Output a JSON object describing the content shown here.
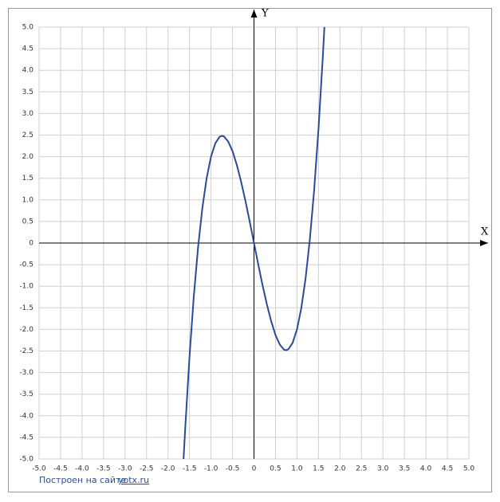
{
  "chart_data": {
    "type": "line",
    "x_label": "X",
    "y_label": "Y",
    "xlim": [
      -5,
      5
    ],
    "ylim": [
      -5,
      5
    ],
    "xticks": [
      {
        "value": -5,
        "label": "-5.0"
      },
      -4.5,
      {
        "value": -4,
        "label": "-4.0"
      },
      -3.5,
      {
        "value": -3,
        "label": "-3.0"
      },
      -2.5,
      {
        "value": -2,
        "label": "-2.0"
      },
      -1.5,
      {
        "value": -1,
        "label": "-1.0"
      },
      -0.5,
      0,
      0.5,
      {
        "value": 1,
        "label": "1.0"
      },
      1.5,
      {
        "value": 2,
        "label": "2.0"
      },
      2.5,
      {
        "value": 3,
        "label": "3.0"
      },
      3.5,
      {
        "value": 4,
        "label": "4.0"
      },
      4.5,
      {
        "value": 5,
        "label": "5.0"
      }
    ],
    "yticks": [
      {
        "value": -5,
        "label": "-5.0"
      },
      -4.5,
      {
        "value": -4,
        "label": "-4.0"
      },
      -3.5,
      {
        "value": -3,
        "label": "-3.0"
      },
      -2.5,
      {
        "value": -2,
        "label": "-2.0"
      },
      -1.5,
      {
        "value": -1,
        "label": "-1.0"
      },
      -0.5,
      0,
      0.5,
      {
        "value": 1,
        "label": "1.0"
      },
      1.5,
      {
        "value": 2,
        "label": "2.0"
      },
      2.5,
      {
        "value": 3,
        "label": "3.0"
      },
      3.5,
      {
        "value": 4,
        "label": "4.0"
      },
      4.5,
      {
        "value": 5,
        "label": "5.0"
      }
    ],
    "grid": true,
    "x": [
      -1.64,
      -1.6,
      -1.5,
      -1.4,
      -1.3,
      -1.2,
      -1.1,
      -1.0,
      -0.9,
      -0.8,
      -0.75,
      -0.7,
      -0.6,
      -0.5,
      -0.4,
      -0.3,
      -0.2,
      -0.1,
      0,
      0.1,
      0.2,
      0.3,
      0.4,
      0.5,
      0.6,
      0.7,
      0.75,
      0.8,
      0.9,
      1.0,
      1.1,
      1.2,
      1.3,
      1.4,
      1.5,
      1.6,
      1.64
    ],
    "series": [
      {
        "color": "#2a4aa0",
        "values": [
          -5.03,
          -4.29,
          -2.63,
          -1.23,
          -0.09,
          0.82,
          1.51,
          2,
          2.31,
          2.46,
          2.48,
          2.47,
          2.35,
          2.13,
          1.81,
          1.42,
          0.98,
          0.5,
          0,
          -0.5,
          -0.98,
          -1.42,
          -1.81,
          -2.13,
          -2.35,
          -2.47,
          -2.48,
          -2.46,
          -2.31,
          -2,
          -1.51,
          -0.82,
          0.09,
          1.23,
          2.63,
          4.29,
          5.03
        ]
      }
    ]
  },
  "footer": {
    "text": "Построен на сайте",
    "link": "yotx.ru"
  }
}
